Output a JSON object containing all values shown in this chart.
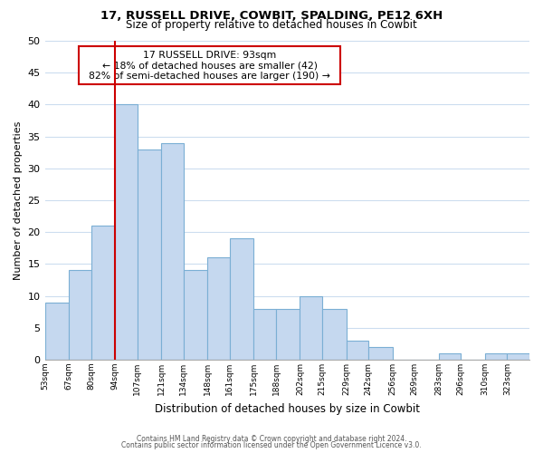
{
  "title": "17, RUSSELL DRIVE, COWBIT, SPALDING, PE12 6XH",
  "subtitle": "Size of property relative to detached houses in Cowbit",
  "xlabel": "Distribution of detached houses by size in Cowbit",
  "ylabel": "Number of detached properties",
  "bin_edges": [
    53,
    67,
    80,
    94,
    107,
    121,
    134,
    148,
    161,
    175,
    188,
    202,
    215,
    229,
    242,
    256,
    269,
    283,
    296,
    310,
    323,
    336
  ],
  "bar_heights": [
    9,
    14,
    21,
    40,
    33,
    34,
    14,
    16,
    19,
    8,
    8,
    10,
    8,
    3,
    2,
    0,
    0,
    1,
    0,
    1,
    1
  ],
  "tick_labels": [
    "53sqm",
    "67sqm",
    "80sqm",
    "94sqm",
    "107sqm",
    "121sqm",
    "134sqm",
    "148sqm",
    "161sqm",
    "175sqm",
    "188sqm",
    "202sqm",
    "215sqm",
    "229sqm",
    "242sqm",
    "256sqm",
    "269sqm",
    "283sqm",
    "296sqm",
    "310sqm",
    "323sqm"
  ],
  "bar_color": "#c5d8ef",
  "bar_edge_color": "#7bafd4",
  "ref_line_x": 94,
  "ref_line_color": "#cc0000",
  "annotation_title": "17 RUSSELL DRIVE: 93sqm",
  "annotation_line1": "← 18% of detached houses are smaller (42)",
  "annotation_line2": "82% of semi-detached houses are larger (190) →",
  "annotation_box_color": "#ffffff",
  "annotation_box_edge": "#cc0000",
  "ylim": [
    0,
    50
  ],
  "yticks": [
    0,
    5,
    10,
    15,
    20,
    25,
    30,
    35,
    40,
    45,
    50
  ],
  "footer_line1": "Contains HM Land Registry data © Crown copyright and database right 2024.",
  "footer_line2": "Contains public sector information licensed under the Open Government Licence v3.0.",
  "background_color": "#ffffff",
  "grid_color": "#ccddef"
}
